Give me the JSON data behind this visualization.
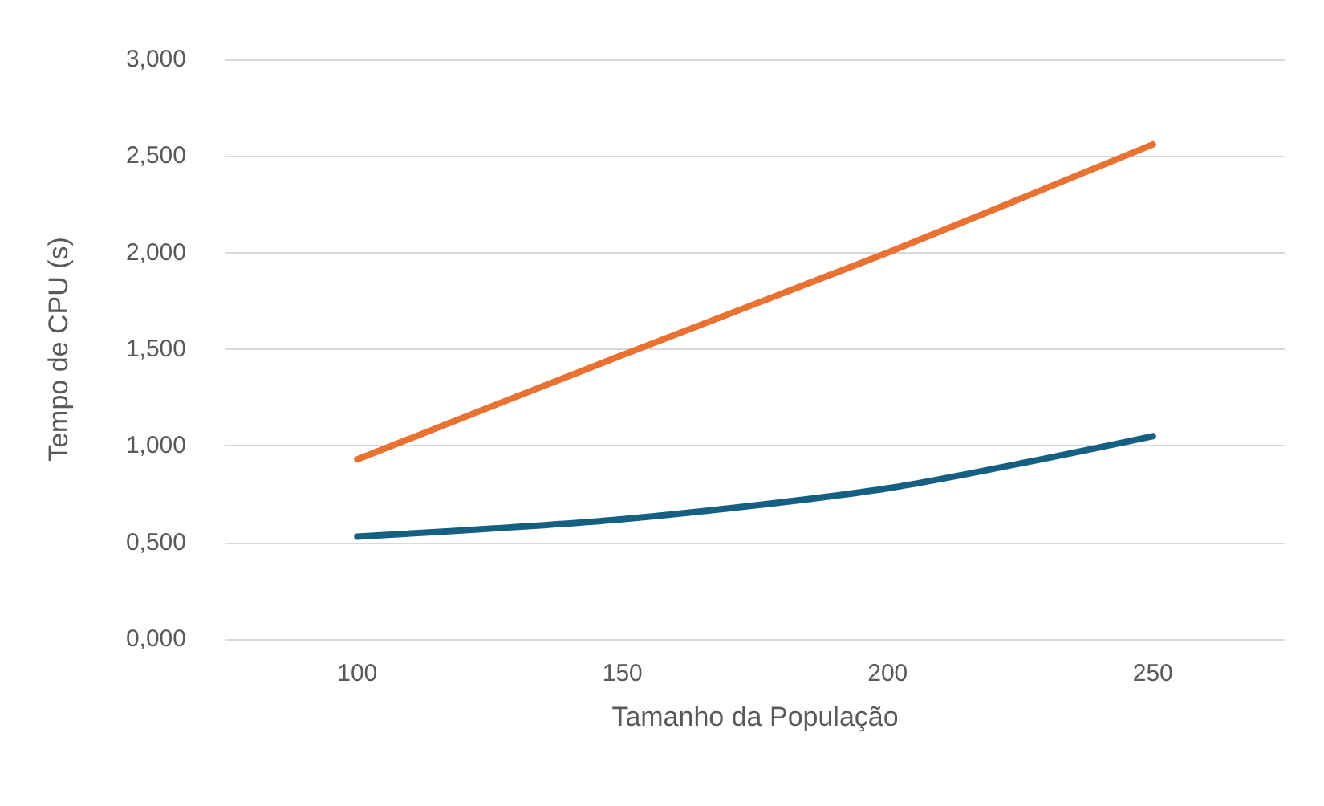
{
  "chart_data": {
    "type": "line",
    "xlabel": "Tamanho da População",
    "ylabel": "Tempo de CPU (s)",
    "categories": [
      "100",
      "150",
      "200",
      "250"
    ],
    "series": [
      {
        "color": "#e97132",
        "values": [
          0.93,
          1.47,
          2.0,
          2.56
        ]
      },
      {
        "color": "#156082",
        "values": [
          0.53,
          0.62,
          0.78,
          1.05
        ]
      }
    ],
    "ylim": [
      0,
      3
    ],
    "yticks": [
      {
        "value": 0,
        "label": "0,000"
      },
      {
        "value": 0.5,
        "label": "0,500"
      },
      {
        "value": 1,
        "label": "1,000"
      },
      {
        "value": 1.5,
        "label": "1,500"
      },
      {
        "value": 2,
        "label": "2,000"
      },
      {
        "value": 2.5,
        "label": "2,500"
      },
      {
        "value": 3,
        "label": "3,000"
      }
    ],
    "grid": "y",
    "marker": "none",
    "line_style": "solid"
  }
}
